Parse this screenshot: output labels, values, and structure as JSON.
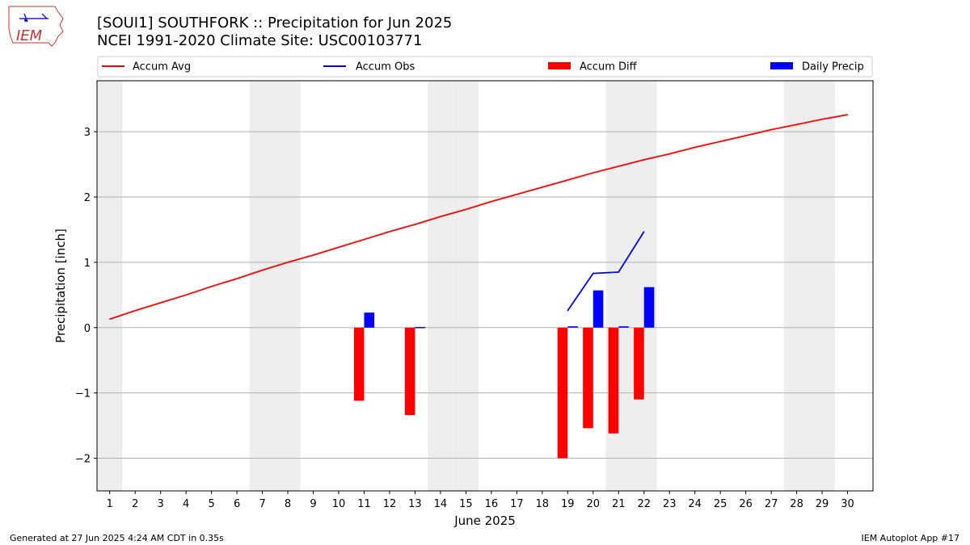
{
  "logo": {
    "text": "IEM"
  },
  "header": {
    "title_line1": "[SOUI1] SOUTHFORK :: Precipitation for Jun 2025",
    "title_line2": "NCEI 1991-2020 Climate Site: USC00103771"
  },
  "footer": {
    "left": "Generated at 27 Jun 2025 4:24 AM CDT in 0.35s",
    "right": "IEM Autoplot App #17"
  },
  "colors": {
    "avg": "#ff0000",
    "obs": "#0000ff",
    "diff": "#ff0000",
    "daily": "#0000ff",
    "weekend": "#eeeeee",
    "grid": "#b0b0b0"
  },
  "chart_data": {
    "type": "bar",
    "xlabel": "June 2025",
    "ylabel": "Precipitation [inch]",
    "xlim": [
      0.5,
      31
    ],
    "ylim": [
      -2.5,
      3.78
    ],
    "yticks": [
      -2,
      -1,
      0,
      1,
      2,
      3
    ],
    "days": [
      1,
      2,
      3,
      4,
      5,
      6,
      7,
      8,
      9,
      10,
      11,
      12,
      13,
      14,
      15,
      16,
      17,
      18,
      19,
      20,
      21,
      22,
      23,
      24,
      25,
      26,
      27,
      28,
      29,
      30
    ],
    "weekend_days": [
      1,
      7,
      8,
      14,
      15,
      21,
      22,
      28,
      29
    ],
    "grid": true,
    "legend": {
      "placement": "top",
      "entries": [
        {
          "label": "Accum Avg",
          "kind": "line",
          "color": "#ff0000"
        },
        {
          "label": "Accum Obs",
          "kind": "line",
          "color": "#0000ff"
        },
        {
          "label": "Accum Diff",
          "kind": "bar",
          "color": "#ff0000"
        },
        {
          "label": "Daily Precip",
          "kind": "bar",
          "color": "#0000ff"
        }
      ]
    },
    "accum_avg": [
      0.13,
      0.26,
      0.38,
      0.5,
      0.63,
      0.75,
      0.88,
      1.0,
      1.11,
      1.23,
      1.35,
      1.47,
      1.58,
      1.7,
      1.81,
      1.93,
      2.04,
      2.15,
      2.26,
      2.37,
      2.47,
      2.57,
      2.66,
      2.76,
      2.85,
      2.94,
      3.03,
      3.11,
      3.19,
      3.26
    ],
    "accum_obs": [
      {
        "day": 19,
        "value": 0.26
      },
      {
        "day": 20,
        "value": 0.83
      },
      {
        "day": 21,
        "value": 0.85
      },
      {
        "day": 22,
        "value": 1.47
      }
    ],
    "accum_diff": [
      {
        "day": 11,
        "value": -1.12
      },
      {
        "day": 13,
        "value": -1.34
      },
      {
        "day": 19,
        "value": -2.0
      },
      {
        "day": 20,
        "value": -1.54
      },
      {
        "day": 21,
        "value": -1.62
      },
      {
        "day": 22,
        "value": -1.1
      }
    ],
    "daily_precip": [
      {
        "day": 11,
        "value": 0.23
      },
      {
        "day": 13,
        "value": 0.01
      },
      {
        "day": 19,
        "value": 0.02
      },
      {
        "day": 20,
        "value": 0.57
      },
      {
        "day": 21,
        "value": 0.02
      },
      {
        "day": 22,
        "value": 0.62
      }
    ]
  }
}
